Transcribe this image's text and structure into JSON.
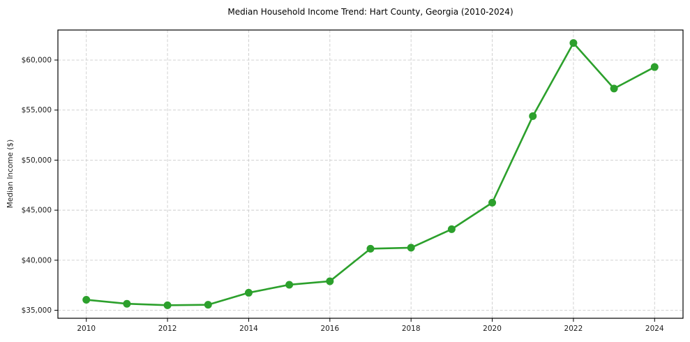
{
  "page": {
    "title": "Median Household Income Trend: Hart County, Georgia (2010-2024)"
  },
  "chart_data": {
    "type": "line",
    "title": "Median Household Income Trend: Hart County, Georgia (2010-2024)",
    "xlabel": "",
    "ylabel": "Median Income ($)",
    "x": [
      2010,
      2011,
      2012,
      2013,
      2014,
      2015,
      2016,
      2017,
      2018,
      2019,
      2020,
      2021,
      2022,
      2023,
      2024
    ],
    "series": [
      {
        "name": "Median household income",
        "values": [
          36050,
          35650,
          35500,
          35550,
          36750,
          37550,
          37900,
          41150,
          41250,
          43100,
          45750,
          54400,
          61700,
          57150,
          59300
        ]
      }
    ],
    "xlim": [
      2009.3,
      2024.7
    ],
    "ylim": [
      34200,
      63000
    ],
    "xticks": [
      2010,
      2012,
      2014,
      2016,
      2018,
      2020,
      2022,
      2024
    ],
    "xtick_labels": [
      "2010",
      "2012",
      "2014",
      "2016",
      "2018",
      "2020",
      "2022",
      "2024"
    ],
    "yticks": [
      35000,
      40000,
      45000,
      50000,
      55000,
      60000
    ],
    "ytick_labels": [
      "$35,000",
      "$40,000",
      "$45,000",
      "$50,000",
      "$55,000",
      "$60,000"
    ],
    "grid": true,
    "legend": "none",
    "marker": "circle",
    "colors": {
      "line": "#2ca02c",
      "marker": "#2ca02c",
      "grid": "#cccccc",
      "spine": "#000000",
      "text": "#1a1a1a",
      "background": "#ffffff"
    }
  }
}
